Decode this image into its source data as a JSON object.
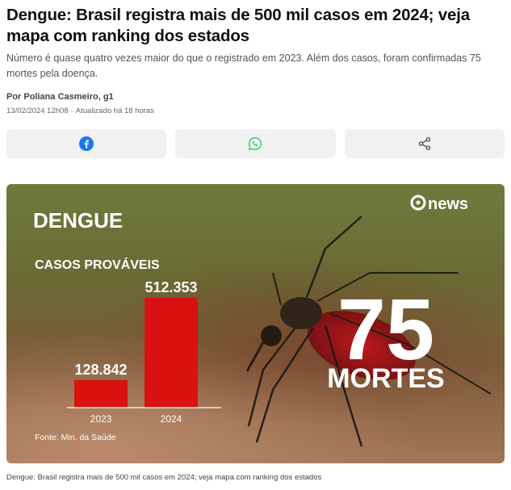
{
  "article": {
    "headline": "Dengue: Brasil registra mais de 500 mil casos em 2024; veja mapa com ranking dos estados",
    "subhead": "Número é quase quatro vezes maior do que o registrado em 2023. Além dos casos, foram confirmadas 75 mortes pela doença.",
    "byline": "Por Poliana Casmeiro, g1",
    "published": "13/02/2024 12h08",
    "updated": "Atualizado há 18 horas",
    "caption": "Dengue: Brasil registra mais de 500 mil casos em 2024; veja mapa com ranking dos estados"
  },
  "share": {
    "buttons": [
      {
        "icon": "facebook-icon",
        "color": "#1877f2"
      },
      {
        "icon": "whatsapp-icon",
        "color": "#25d366"
      },
      {
        "icon": "share-icon",
        "color": "#444444"
      }
    ]
  },
  "figure": {
    "brand": "news",
    "title": "DENGUE",
    "subtitle": "CASOS PROVÁVEIS",
    "source": "Fonte: Min. da Saúde",
    "deaths_number": "75",
    "deaths_label": "MORTES",
    "bar_color": "#d81111"
  },
  "chart_data": {
    "type": "bar",
    "title": "CASOS PROVÁVEIS",
    "categories": [
      "2023",
      "2024"
    ],
    "values": [
      128842,
      512353
    ],
    "value_labels": [
      "128.842",
      "512.353"
    ],
    "ylim": [
      0,
      512353
    ],
    "grid": false
  }
}
